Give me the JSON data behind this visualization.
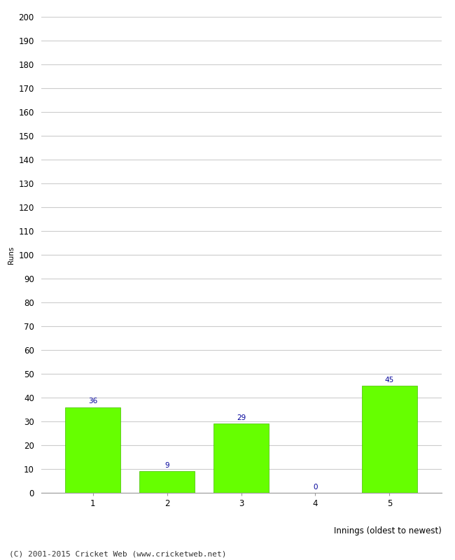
{
  "xlabel": "Innings (oldest to newest)",
  "ylabel": "Runs",
  "categories": [
    "1",
    "2",
    "3",
    "4",
    "5"
  ],
  "values": [
    36,
    9,
    29,
    0,
    45
  ],
  "bar_color": "#66ff00",
  "bar_edge_color": "#44bb00",
  "label_color": "#000099",
  "ylim": [
    0,
    200
  ],
  "ytick_step": 10,
  "background_color": "#ffffff",
  "grid_color": "#cccccc",
  "footer": "(C) 2001-2015 Cricket Web (www.cricketweb.net)",
  "label_fontsize": 7.5,
  "axis_tick_fontsize": 8.5,
  "ylabel_fontsize": 7.5,
  "xlabel_fontsize": 8.5,
  "footer_fontsize": 8
}
